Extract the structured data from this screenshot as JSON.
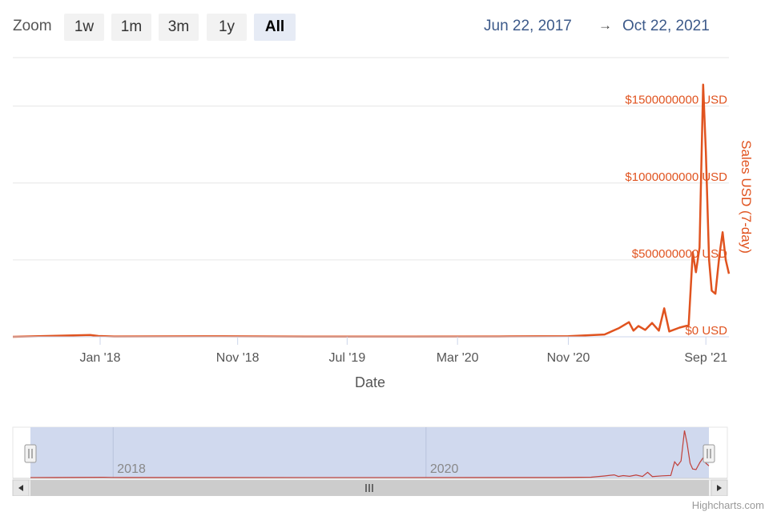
{
  "zoom": {
    "label": "Zoom",
    "buttons": [
      "1w",
      "1m",
      "3m",
      "1y",
      "All"
    ],
    "active": "All"
  },
  "range": {
    "from": "Jun 22, 2017",
    "arrow": "→",
    "to": "Oct 22, 2021"
  },
  "credits": "Highcharts.com",
  "chart_data": {
    "type": "line",
    "title": "",
    "xlabel": "Date",
    "ylabel": "Sales USD (7-day)",
    "x_tick_labels": [
      "Jan '18",
      "Nov '18",
      "Jul '19",
      "Mar '20",
      "Nov '20",
      "Sep '21"
    ],
    "y_tick_labels": [
      "$0 USD",
      "$500000000 USD",
      "$1000000000 USD",
      "$1500000000 USD"
    ],
    "ylim": [
      0,
      1800000000
    ],
    "y_axis_position": "right",
    "grid": true,
    "series": [
      {
        "color": "#e0531f",
        "points": [
          [
            "2017-06-22",
            0
          ],
          [
            "2017-12-10",
            12000000
          ],
          [
            "2017-12-28",
            5000000
          ],
          [
            "2018-02-01",
            2000000
          ],
          [
            "2018-10-01",
            3000000
          ],
          [
            "2019-06-01",
            1000000
          ],
          [
            "2020-06-01",
            2000000
          ],
          [
            "2020-11-01",
            4000000
          ],
          [
            "2021-01-20",
            15000000
          ],
          [
            "2021-02-20",
            55000000
          ],
          [
            "2021-03-15",
            95000000
          ],
          [
            "2021-03-25",
            40000000
          ],
          [
            "2021-04-05",
            70000000
          ],
          [
            "2021-04-20",
            45000000
          ],
          [
            "2021-05-05",
            90000000
          ],
          [
            "2021-05-20",
            40000000
          ],
          [
            "2021-06-01",
            185000000
          ],
          [
            "2021-06-12",
            35000000
          ],
          [
            "2021-07-05",
            60000000
          ],
          [
            "2021-07-25",
            75000000
          ],
          [
            "2021-08-03",
            550000000
          ],
          [
            "2021-08-10",
            420000000
          ],
          [
            "2021-08-18",
            580000000
          ],
          [
            "2021-08-26",
            1640000000
          ],
          [
            "2021-09-01",
            1200000000
          ],
          [
            "2021-09-08",
            500000000
          ],
          [
            "2021-09-14",
            300000000
          ],
          [
            "2021-09-22",
            280000000
          ],
          [
            "2021-10-01",
            530000000
          ],
          [
            "2021-10-08",
            680000000
          ],
          [
            "2021-10-15",
            500000000
          ],
          [
            "2021-10-22",
            410000000
          ]
        ]
      }
    ],
    "navigator": {
      "x_tick_labels": [
        "2018",
        "2020"
      ],
      "color": "#c0403a"
    }
  }
}
